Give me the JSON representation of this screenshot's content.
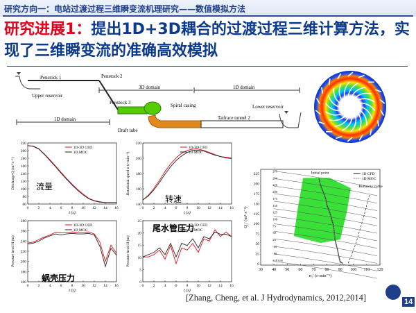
{
  "section_title": "研究方向一：电站过渡过程三维瞬变流机理研究——数值模拟方法",
  "headline": {
    "prefix": "研究进展1：",
    "text": "提出1D+3D耦合的过渡过程三维计算方法，实现了三维瞬变流的准确高效模拟"
  },
  "schematic": {
    "penstock1": "Penstock 1",
    "penstock2": "Penstock 2",
    "penstock3": "Penstock 3",
    "upper_reservoir": "Upper reservoir",
    "lower_reservoir": "Lower reservoir",
    "domain_3d": "3D domain",
    "domain_1d_right": "1D domain",
    "domain_1d_bottom": "1D domain",
    "spiral_casing": "Spiral casing",
    "draft_tube": "Draft tube",
    "tailrace": "Tailrace tunnel 2",
    "colors": {
      "green": "#55cc00",
      "orange": "#e08a1e"
    }
  },
  "runner_icon": "runner-pressure-contour",
  "charts": {
    "discharge": {
      "cn_label": "流量",
      "ylabel": "Discharge Q (m³·s⁻¹)",
      "xlabel": "t (s)",
      "legend": [
        "1D-3D CFD",
        "1D MOC"
      ],
      "yticks": [
        "220",
        "200",
        "180",
        "160",
        "140",
        "120",
        "100",
        "80",
        "60"
      ],
      "xticks": [
        "0",
        "2",
        "4",
        "6",
        "8",
        "10",
        "12",
        "14",
        "16"
      ],
      "chart_data": {
        "type": "line",
        "x": [
          0,
          1,
          2,
          3,
          4,
          5,
          6,
          7,
          8,
          9,
          10,
          11,
          12,
          13,
          14,
          15,
          16
        ],
        "xlim": [
          0,
          16
        ],
        "ylim": [
          60,
          220
        ],
        "series": [
          {
            "name": "1D-3D CFD",
            "values": [
              213,
              212,
              205,
              191,
              176,
              160,
              143,
              127,
              112,
              98,
              86,
              75,
              69,
              66,
              64,
              64,
              64
            ]
          },
          {
            "name": "1D MOC",
            "values": [
              213,
              211,
              204,
              190,
              174,
              158,
              141,
              125,
              110,
              96,
              84,
              74,
              68,
              65,
              64,
              64,
              64
            ]
          }
        ]
      }
    },
    "speed": {
      "cn_label": "转速",
      "ylabel": "Rotational speed n (r·min⁻¹)",
      "xlabel": "t (s)",
      "legend": [
        "1D-3D CFD",
        "1D MOC"
      ],
      "yticks": [
        "220",
        "200",
        "180",
        "160",
        "140"
      ],
      "xticks": [
        "0",
        "2",
        "4",
        "6",
        "8",
        "10",
        "12",
        "14",
        "16"
      ],
      "chart_data": {
        "type": "line",
        "x": [
          0,
          1,
          2,
          3,
          4,
          5,
          6,
          7,
          8,
          9,
          10,
          11,
          12,
          13,
          14,
          15,
          16
        ],
        "xlim": [
          0,
          16
        ],
        "ylim": [
          140,
          230
        ],
        "series": [
          {
            "name": "1D-3D CFD",
            "values": [
              146,
              153,
              163,
              175,
              188,
              199,
              208,
              215,
              219,
              221,
              221,
              219,
              216,
              213,
              210,
              209,
              208
            ]
          },
          {
            "name": "1D MOC",
            "values": [
              146,
              152,
              161,
              172,
              184,
              195,
              204,
              211,
              216,
              219,
              219,
              218,
              215,
              212,
              210,
              208,
              207
            ]
          }
        ]
      }
    },
    "spiral": {
      "cn_label": "蜗壳压力",
      "ylabel": "Pressure head H (m)",
      "xlabel": "t (s)",
      "legend": [
        "1D-3D CFD",
        "1D MOC"
      ],
      "yticks": [
        "280",
        "260",
        "240",
        "220",
        "200",
        "180",
        "160"
      ],
      "xticks": [
        "0",
        "2",
        "4",
        "6",
        "8",
        "10",
        "12",
        "14",
        "16"
      ],
      "chart_data": {
        "type": "line",
        "x": [
          0,
          1,
          2,
          3,
          4,
          5,
          6,
          7,
          8,
          9,
          10,
          11,
          12,
          13,
          14,
          15,
          16
        ],
        "xlim": [
          0,
          16
        ],
        "ylim": [
          160,
          280
        ],
        "series": [
          {
            "name": "1D-3D CFD",
            "values": [
              236,
              238,
              243,
              248,
              252,
              257,
              256,
              256,
              258,
              257,
              256,
              258,
              254,
              238,
              200,
              232,
              216
            ]
          },
          {
            "name": "1D MOC",
            "values": [
              234,
              236,
              240,
              246,
              250,
              254,
              252,
              254,
              255,
              254,
              254,
              255,
              252,
              230,
              190,
              226,
              212
            ]
          }
        ]
      }
    },
    "draft": {
      "cn_label": "尾水管压力",
      "ylabel": "Pressure head H (m)",
      "xlabel": "t (s)",
      "legend": [
        "1D-3D CFD",
        "1D MOC"
      ],
      "yticks": [
        "25",
        "20",
        "15",
        "10",
        "5",
        "0"
      ],
      "xticks": [
        "0",
        "2",
        "4",
        "6",
        "8",
        "10",
        "12",
        "14",
        "16"
      ],
      "chart_data": {
        "type": "line",
        "x": [
          0,
          1,
          2,
          3,
          4,
          5,
          6,
          7,
          8,
          9,
          10,
          11,
          12,
          13,
          14,
          15,
          16
        ],
        "xlim": [
          0,
          16
        ],
        "ylim": [
          -2,
          25
        ],
        "series": [
          {
            "name": "1D-3D CFD",
            "values": [
              9,
              9,
              10,
              12,
              8,
              14,
              6,
              13,
              12,
              15,
              11,
              17,
              16,
              21,
              18,
              20,
              18
            ]
          },
          {
            "name": "1D MOC",
            "values": [
              9,
              10,
              11,
              13,
              10,
              15,
              9,
              15,
              14,
              17,
              13,
              18,
              17,
              20,
              19,
              19,
              18
            ]
          }
        ]
      }
    },
    "hill": {
      "ylabel": "Q₁' (m³·s⁻¹)",
      "xlabel": "n₁' (r·min⁻¹)",
      "legend": [
        "1D CFD",
        "1D MOC"
      ],
      "initial_point": "Initial point",
      "runaway_curve": "Runaway curve",
      "yticks": [
        "225",
        "200",
        "175",
        "150",
        "125",
        "100",
        "75",
        "50",
        "25",
        "0"
      ],
      "xticks": [
        "30",
        "40",
        "50",
        "60",
        "70",
        "80",
        "90",
        "100",
        "110",
        "120"
      ],
      "contour_labels": [
        "275",
        "250",
        "225",
        "200",
        "175",
        "150",
        "125",
        "100",
        "75",
        "50",
        "25",
        "-25",
        "-50",
        "a=0 mm"
      ],
      "colors": {
        "region": "#22dd22"
      },
      "chart_data": {
        "type": "line",
        "xlim": [
          30,
          120
        ],
        "ylim": [
          -5,
          275
        ],
        "series": [
          {
            "name": "1D CFD",
            "x": [
              74,
              75,
              77,
              79,
              80,
              82,
              85,
              86,
              88,
              89,
              90,
              92
            ],
            "y": [
              248,
              230,
              210,
              190,
              170,
              150,
              110,
              70,
              40,
              20,
              5,
              0
            ]
          },
          {
            "name": "1D MOC",
            "x": [
              74,
              75,
              77,
              79,
              80,
              82,
              85,
              86,
              88,
              89,
              90,
              92
            ],
            "y": [
              246,
              228,
              208,
              188,
              168,
              148,
              108,
              68,
              38,
              18,
              3,
              0
            ]
          }
        ]
      }
    }
  },
  "citation": "[Zhang, Cheng, et al. J Hydrodynamics, 2012,2014]",
  "page_number": "14"
}
